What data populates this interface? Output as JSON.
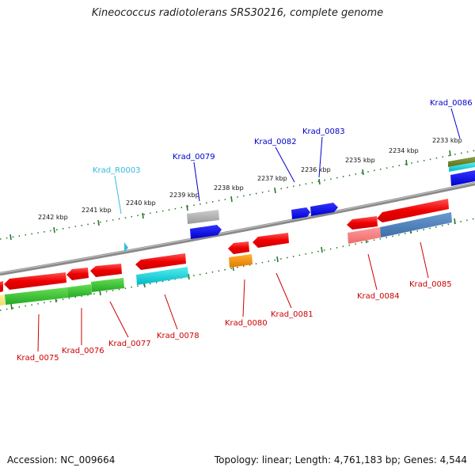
{
  "title": "Kineococcus radiotolerans SRS30216, complete genome",
  "footer": {
    "accession": "Accession: NC_009664",
    "summary": "Topology: linear; Length: 4,761,183 bp; Genes: 4,544"
  },
  "colors": {
    "backbone": "#808080",
    "plus_strand_label": "#0000cc",
    "minus_strand_label": "#cc0000",
    "rna_label": "#33bbdd",
    "tick": "#2a7a2a"
  },
  "scale_ticks": [
    "2242 kbp",
    "2241 kbp",
    "2240 kbp",
    "2239 kbp",
    "2238 kbp",
    "2237 kbp",
    "2236 kbp",
    "2235 kbp",
    "2234 kbp",
    "2233 kbp"
  ],
  "gene_labels_top": [
    "Krad_R0003",
    "Krad_0079",
    "Krad_0082",
    "Krad_0083",
    "Krad_0086"
  ],
  "gene_labels_bottom": [
    "Krad_0075",
    "Krad_0076",
    "Krad_0077",
    "Krad_0078",
    "Krad_0080",
    "Krad_0081",
    "Krad_0084",
    "Krad_0085"
  ]
}
